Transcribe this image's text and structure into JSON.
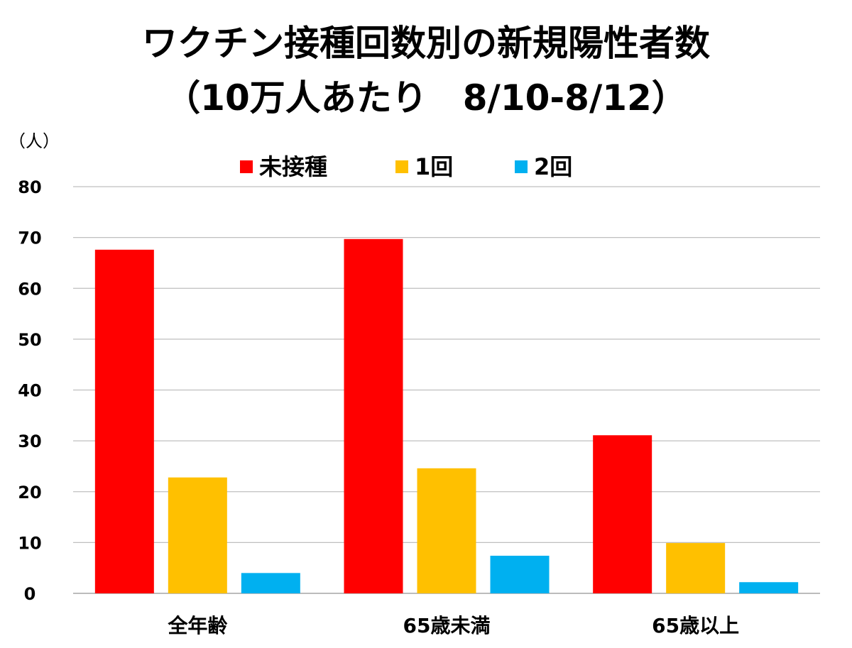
{
  "chart_data": {
    "type": "bar",
    "title": "ワクチン接種回数別の新規陽性者数",
    "subtitle": "（10万人あたり　8/10-8/12）",
    "ylabel": "（人）",
    "xlabel": "",
    "ylim": [
      0,
      80
    ],
    "yticks": [
      "0",
      "10",
      "20",
      "30",
      "40",
      "50",
      "60",
      "70",
      "80"
    ],
    "categories": [
      "全年齢",
      "65歳未満",
      "65歳以上"
    ],
    "series": [
      {
        "name": "未接種",
        "color": "#ff0000",
        "values": [
          67.6,
          69.7,
          31.1
        ]
      },
      {
        "name": "1回",
        "color": "#ffc000",
        "values": [
          22.8,
          24.6,
          9.9
        ]
      },
      {
        "name": "2回",
        "color": "#00b0f0",
        "values": [
          4.0,
          7.4,
          2.2
        ]
      }
    ],
    "grid": true,
    "legend_position": "top"
  }
}
